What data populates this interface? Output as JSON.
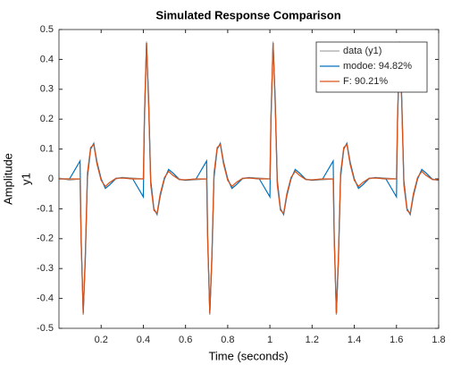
{
  "chart_data": {
    "type": "line",
    "title": "Simulated Response Comparison",
    "xlabel": "Time (seconds)",
    "ylabel": "y1",
    "outer_ylabel": "Amplitude",
    "x": [
      0,
      0.05,
      0.1,
      0.105,
      0.115,
      0.125,
      0.135,
      0.15,
      0.165,
      0.18,
      0.2,
      0.22,
      0.24,
      0.27,
      0.3,
      0.35,
      0.4,
      0.405,
      0.415,
      0.425,
      0.435,
      0.45,
      0.465,
      0.48,
      0.5,
      0.52,
      0.54,
      0.57,
      0.6,
      0.65,
      0.7,
      0.705,
      0.715,
      0.725,
      0.735,
      0.75,
      0.765,
      0.78,
      0.8,
      0.82,
      0.84,
      0.87,
      0.9,
      0.95,
      1,
      1.005,
      1.015,
      1.025,
      1.035,
      1.05,
      1.065,
      1.08,
      1.1,
      1.12,
      1.14,
      1.17,
      1.2,
      1.25,
      1.3,
      1.305,
      1.315,
      1.325,
      1.335,
      1.35,
      1.365,
      1.38,
      1.4,
      1.42,
      1.44,
      1.47,
      1.5,
      1.55,
      1.6,
      1.605,
      1.615,
      1.625,
      1.635,
      1.65,
      1.665,
      1.68,
      1.7,
      1.72,
      1.74,
      1.77,
      1.8
    ],
    "series": [
      {
        "name": "data (y1)",
        "color": "#a6a6a6",
        "values": [
          0.003,
          -0.004,
          0,
          -0.2,
          -0.455,
          -0.26,
          0.01,
          0.1,
          0.12,
          0.06,
          0,
          -0.03,
          -0.02,
          0,
          0.005,
          0.003,
          0,
          0.2,
          0.46,
          0.26,
          -0.01,
          -0.1,
          -0.12,
          -0.06,
          0,
          0.03,
          0.02,
          0,
          -0.005,
          -0.003,
          0,
          -0.2,
          -0.455,
          -0.26,
          0.01,
          0.1,
          0.12,
          0.06,
          0,
          -0.03,
          -0.02,
          0,
          0.005,
          0.003,
          0,
          0.2,
          0.46,
          0.26,
          -0.01,
          -0.1,
          -0.12,
          -0.06,
          0,
          0.03,
          0.02,
          0,
          -0.005,
          -0.003,
          0,
          -0.2,
          -0.455,
          -0.26,
          0.01,
          0.1,
          0.12,
          0.06,
          0,
          -0.03,
          -0.02,
          0,
          0.005,
          0.003,
          0,
          0.2,
          0.46,
          0.26,
          -0.01,
          -0.1,
          -0.12,
          -0.06,
          0,
          0.03,
          0.02,
          0,
          -0.005
        ]
      },
      {
        "name": "modoe: 94.82%",
        "color": "#0072bd",
        "values": [
          0,
          0,
          0.06,
          -0.19,
          -0.45,
          -0.27,
          0.005,
          0.1,
          0.118,
          0.055,
          0,
          -0.032,
          -0.02,
          0.002,
          0.004,
          0,
          -0.06,
          0.19,
          0.455,
          0.27,
          -0.005,
          -0.1,
          -0.118,
          -0.055,
          0,
          0.032,
          0.02,
          -0.002,
          -0.004,
          0,
          0.06,
          -0.19,
          -0.45,
          -0.27,
          0.005,
          0.1,
          0.118,
          0.055,
          0,
          -0.032,
          -0.02,
          0.002,
          0.004,
          0,
          -0.06,
          0.19,
          0.455,
          0.27,
          -0.005,
          -0.1,
          -0.118,
          -0.055,
          0,
          0.032,
          0.02,
          -0.002,
          -0.004,
          0,
          0.06,
          -0.19,
          -0.45,
          -0.27,
          0.005,
          0.1,
          0.118,
          0.055,
          0,
          -0.032,
          -0.02,
          0.002,
          0.004,
          0,
          -0.06,
          0.19,
          0.455,
          0.27,
          -0.005,
          -0.1,
          -0.118,
          -0.055,
          0,
          0.032,
          0.02,
          -0.002,
          -0.004
        ]
      },
      {
        "name": "F: 90.21%",
        "color": "#d95319",
        "values": [
          0,
          0,
          0,
          -0.21,
          -0.45,
          -0.25,
          0.02,
          0.105,
          0.115,
          0.05,
          -0.005,
          -0.025,
          -0.012,
          0.002,
          0.003,
          0,
          0,
          0.21,
          0.455,
          0.25,
          -0.02,
          -0.105,
          -0.115,
          -0.05,
          0.005,
          0.025,
          0.012,
          -0.002,
          -0.003,
          0,
          0,
          -0.21,
          -0.45,
          -0.25,
          0.02,
          0.105,
          0.115,
          0.05,
          -0.005,
          -0.025,
          -0.012,
          0.002,
          0.003,
          0,
          0,
          0.21,
          0.455,
          0.25,
          -0.02,
          -0.105,
          -0.115,
          -0.05,
          0.005,
          0.025,
          0.012,
          -0.002,
          -0.003,
          0,
          0,
          -0.21,
          -0.45,
          -0.25,
          0.02,
          0.105,
          0.115,
          0.05,
          -0.005,
          -0.025,
          -0.012,
          0.002,
          0.003,
          0,
          0,
          0.21,
          0.455,
          0.25,
          -0.02,
          -0.105,
          -0.115,
          -0.05,
          0.005,
          0.025,
          0.012,
          -0.002,
          -0.003
        ]
      }
    ],
    "xlim": [
      0,
      1.8
    ],
    "xticks": [
      0.2,
      0.4,
      0.6,
      0.8,
      1,
      1.2,
      1.4,
      1.6,
      1.8
    ],
    "ylim": [
      -0.5,
      0.5
    ],
    "yticks": [
      -0.5,
      -0.4,
      -0.3,
      -0.2,
      -0.1,
      0,
      0.1,
      0.2,
      0.3,
      0.4,
      0.5
    ],
    "grid": false,
    "legend_position": "upper right"
  }
}
